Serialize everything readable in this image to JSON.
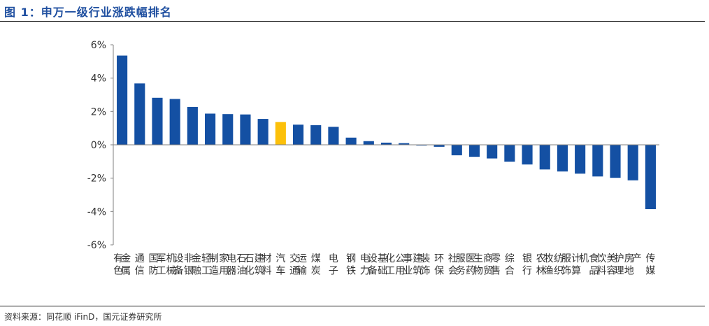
{
  "figure": {
    "title": "图 1：申万一级行业涨跌幅排名",
    "source": "资料来源：同花顺 iFinD，国元证券研究所"
  },
  "chart_data": {
    "type": "bar",
    "title": "",
    "xlabel": "",
    "ylabel": "",
    "ylim": [
      -6,
      6
    ],
    "yticks": [
      6,
      4,
      2,
      0,
      -2,
      -4,
      -6
    ],
    "ytick_labels": [
      "6%",
      "4%",
      "2%",
      "0%",
      "-2%",
      "-4%",
      "-6%"
    ],
    "grid": false,
    "legend": "none",
    "categories": [
      "有色金属",
      "通信",
      "国防军工",
      "机械设备",
      "非银金融",
      "轻工制造",
      "家用电器",
      "石油石化",
      "建筑材料",
      "汽车",
      "交通运输",
      "煤炭",
      "电子",
      "钢铁",
      "电力设备",
      "基础化工",
      "公用事业",
      "建筑装饰",
      "环保",
      "社会服务",
      "医药生物",
      "商贸零售",
      "综合",
      "银行",
      "农林牧渔",
      "纺织服饰",
      "计算机",
      "食品饮料",
      "美容护理",
      "房地产",
      "传媒"
    ],
    "values": [
      5.35,
      3.68,
      2.82,
      2.75,
      2.27,
      1.87,
      1.84,
      1.82,
      1.55,
      1.37,
      1.21,
      1.18,
      1.08,
      0.43,
      0.22,
      0.13,
      0.1,
      -0.04,
      -0.12,
      -0.63,
      -0.72,
      -0.82,
      -1.01,
      -1.18,
      -1.48,
      -1.6,
      -1.73,
      -1.9,
      -1.98,
      -2.13,
      -3.86
    ],
    "highlight_category": "汽车",
    "colors": {
      "bar": "#1450a3",
      "highlight": "#fcc00a",
      "axis": "#808080",
      "text": "#333333",
      "title": "#1f4fa0"
    }
  }
}
